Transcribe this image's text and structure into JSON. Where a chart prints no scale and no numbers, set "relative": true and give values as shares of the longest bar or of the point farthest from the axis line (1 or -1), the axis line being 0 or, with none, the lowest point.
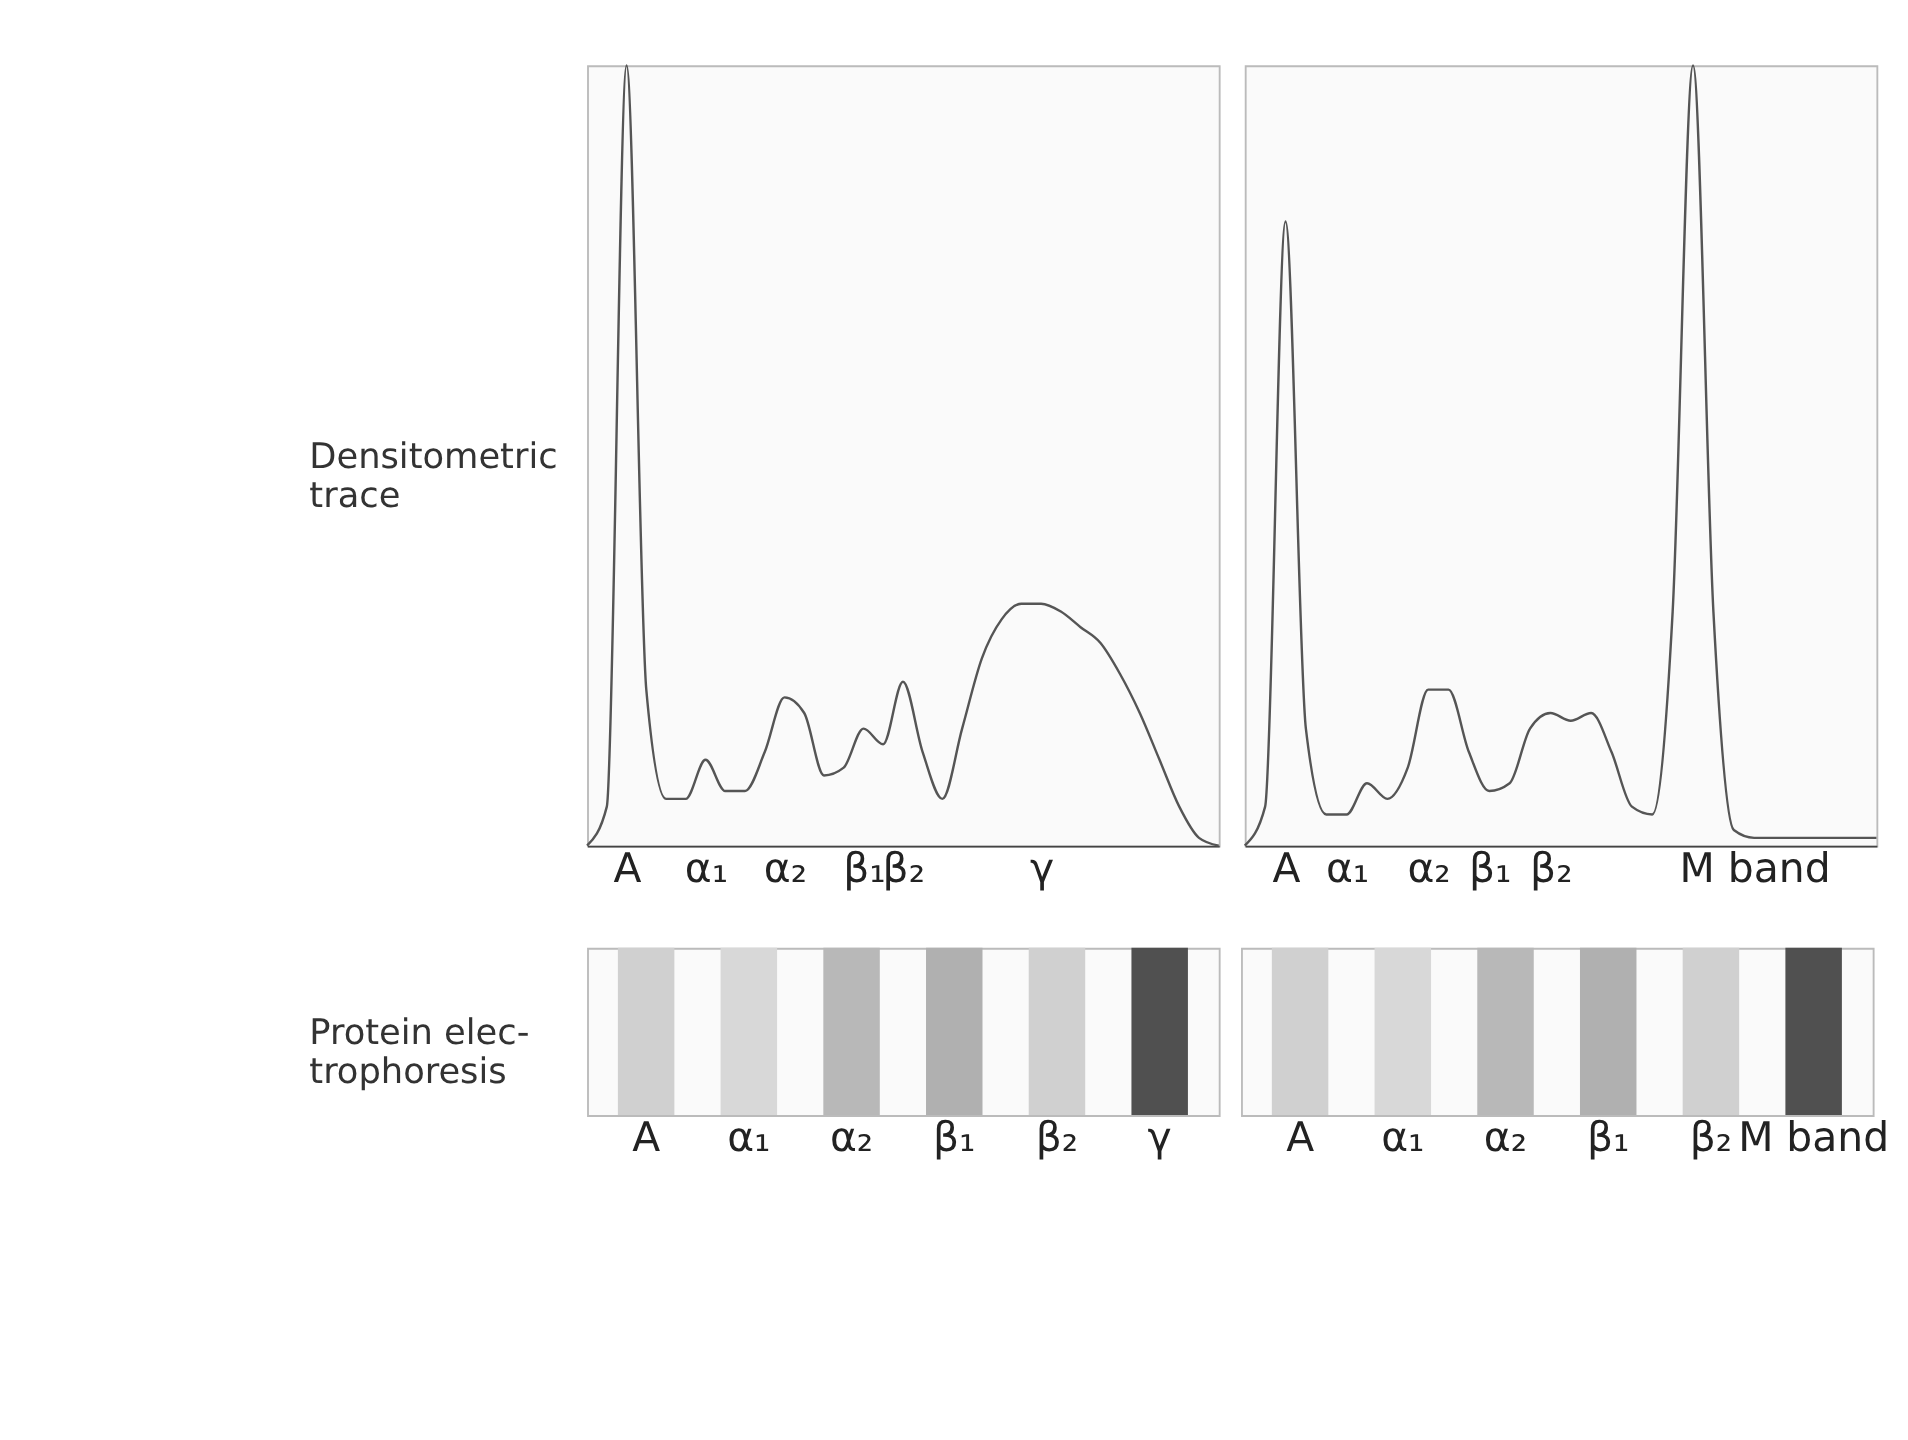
{
  "chart_data": [
    {
      "type": "line",
      "relative": true,
      "ylabel": "Densitometric\ntrace",
      "categories": [
        null,
        null,
        "A",
        null,
        null,
        null,
        "α₁",
        null,
        null,
        null,
        "α₂",
        null,
        null,
        null,
        "β₁",
        null,
        "β₂",
        null,
        null,
        null,
        null,
        null,
        null,
        "γ",
        null,
        null,
        null,
        null,
        null,
        null,
        null,
        null,
        null
      ],
      "series": [
        {
          "color": "#555555",
          "values": [
            0.0,
            0.05,
            1.0,
            0.2,
            0.06,
            0.06,
            0.11,
            0.07,
            0.07,
            0.12,
            0.19,
            0.17,
            0.09,
            0.1,
            0.15,
            0.13,
            0.21,
            0.12,
            0.06,
            0.15,
            0.24,
            0.29,
            0.31,
            0.31,
            0.3,
            0.28,
            0.26,
            0.22,
            0.17,
            0.11,
            0.05,
            0.01,
            0.0
          ]
        }
      ]
    },
    {
      "type": "line",
      "relative": true,
      "categories": [
        null,
        null,
        "A",
        null,
        null,
        "α₁",
        null,
        null,
        null,
        "α₂",
        null,
        null,
        "β₁",
        null,
        null,
        "β₂",
        null,
        null,
        null,
        null,
        null,
        null,
        null,
        null,
        null,
        "M band",
        null,
        null,
        null,
        null,
        null,
        null
      ],
      "series": [
        {
          "color": "#555555",
          "values": [
            0.0,
            0.05,
            0.8,
            0.15,
            0.04,
            0.04,
            0.08,
            0.06,
            0.1,
            0.2,
            0.2,
            0.12,
            0.07,
            0.08,
            0.15,
            0.17,
            0.16,
            0.17,
            0.12,
            0.05,
            0.04,
            0.3,
            1.0,
            0.3,
            0.02,
            0.01,
            0.01,
            0.01,
            0.01,
            0.01,
            0.01,
            0.01
          ]
        }
      ]
    },
    {
      "type": "bar",
      "relative": true,
      "ylabel": "Protein elec-\ntrophoresis",
      "categories": [
        "A",
        "α₁",
        "α₂",
        "β₁",
        "β₂",
        "γ"
      ],
      "values": [
        1,
        1,
        1,
        1,
        1,
        1
      ],
      "colors": [
        "#d0d0d0",
        "#d8d8d8",
        "#b8b8b8",
        "#b0b0b0",
        "#d0d0d0",
        "#505050"
      ]
    },
    {
      "type": "bar",
      "relative": true,
      "categories": [
        "A",
        "α₁",
        "α₂",
        "β₁",
        "β₂",
        "M band"
      ],
      "values": [
        1,
        1,
        1,
        1,
        1,
        1
      ],
      "colors": [
        "#d4d4d4",
        "#dcdcdc",
        "#b0b0b0",
        "#b8b8b8",
        "#d4d4d4",
        "#505050"
      ]
    }
  ]
}
